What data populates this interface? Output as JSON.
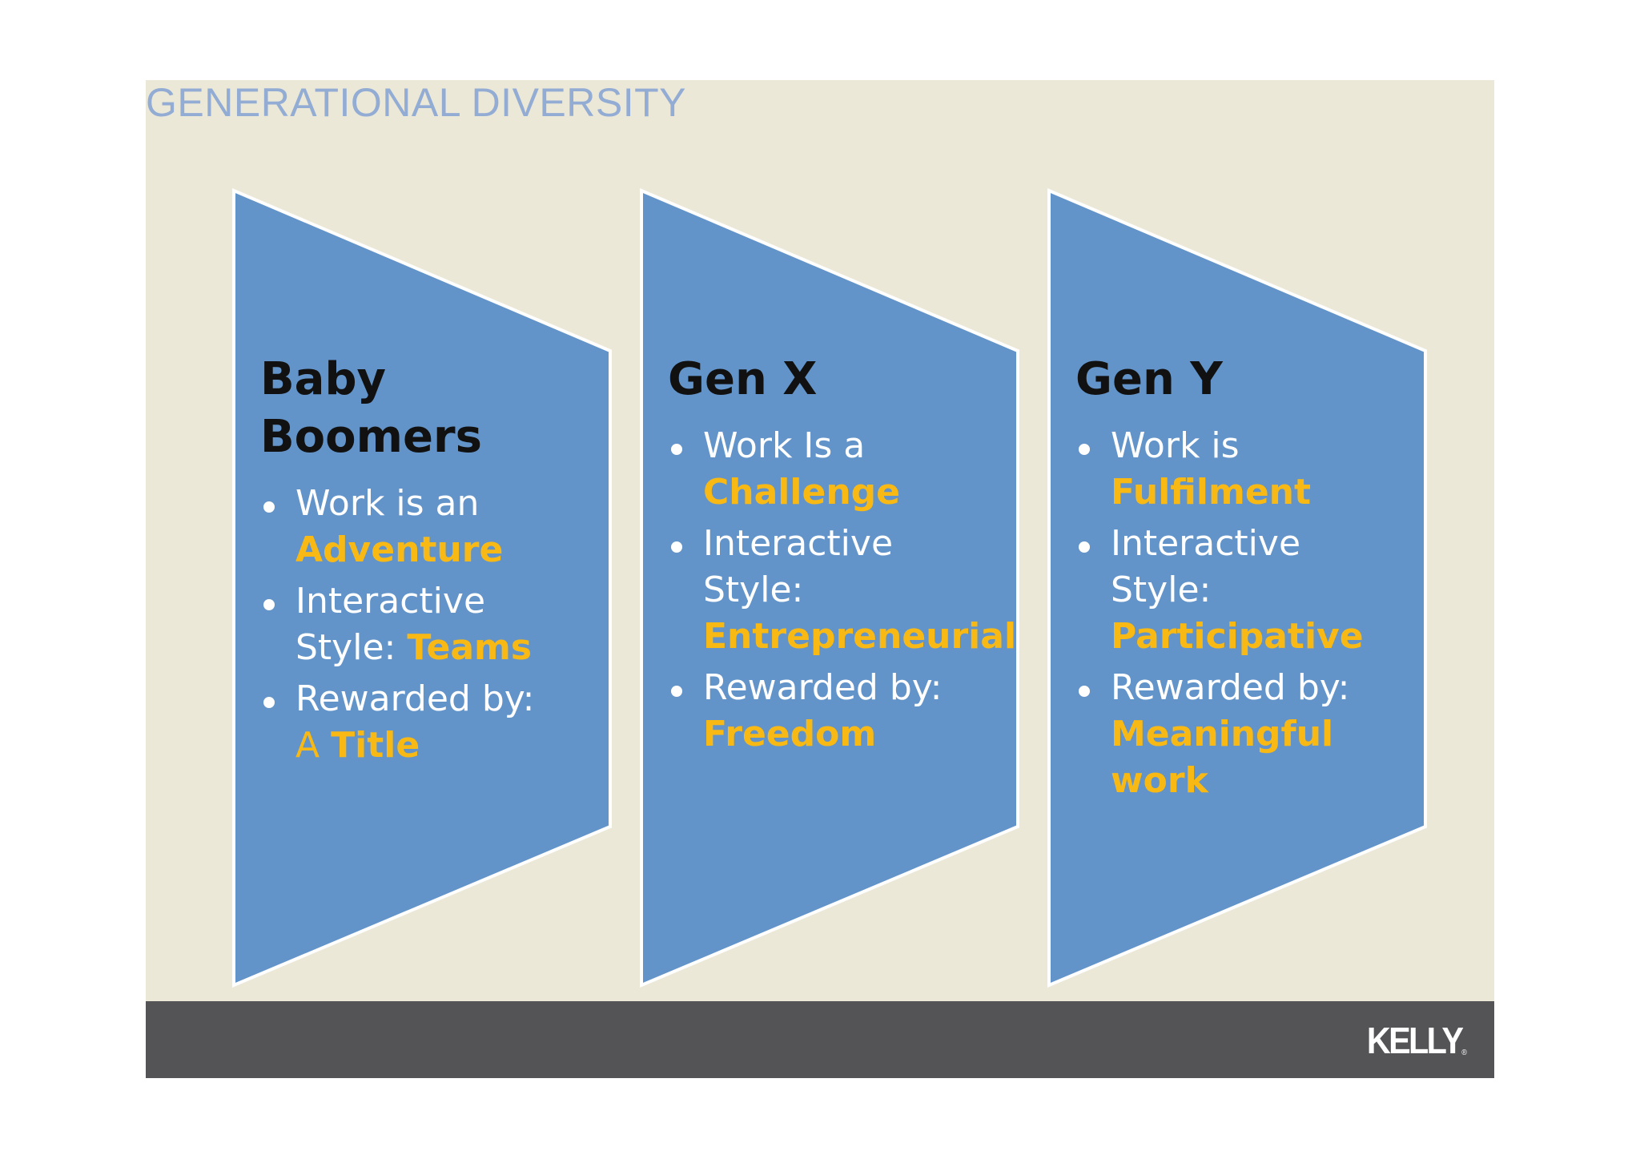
{
  "slide": {
    "title": "GENERATIONAL DIVERSITY",
    "background_color": "#ebe8d8",
    "panel_color": "#6394c9",
    "highlight_color": "#f8b914"
  },
  "generations": [
    {
      "heading_line1": "Baby",
      "heading_line2": "Boomers",
      "bullets": [
        {
          "text": "Work is an",
          "highlight": "Adventure"
        },
        {
          "text": "Interactive Style:",
          "highlight": "Teams"
        },
        {
          "text": "Rewarded by:",
          "prefix": "A",
          "highlight": "Title"
        }
      ]
    },
    {
      "heading_line1": "Gen X",
      "bullets": [
        {
          "text": "Work Is a",
          "highlight": "Challenge"
        },
        {
          "text": "Interactive Style:",
          "highlight": "Entrepreneurial"
        },
        {
          "text": "Rewarded by:",
          "highlight": "Freedom"
        }
      ]
    },
    {
      "heading_line1": "Gen Y",
      "bullets": [
        {
          "text": "Work is",
          "highlight": "Fulfilment"
        },
        {
          "text": "Interactive Style:",
          "highlight": "Participative"
        },
        {
          "text": "Rewarded by:",
          "highlight": "Meaningful work"
        }
      ]
    }
  ],
  "footer": {
    "logo_text": "KELLY",
    "logo_mark": "®",
    "bar_color": "#545457"
  }
}
